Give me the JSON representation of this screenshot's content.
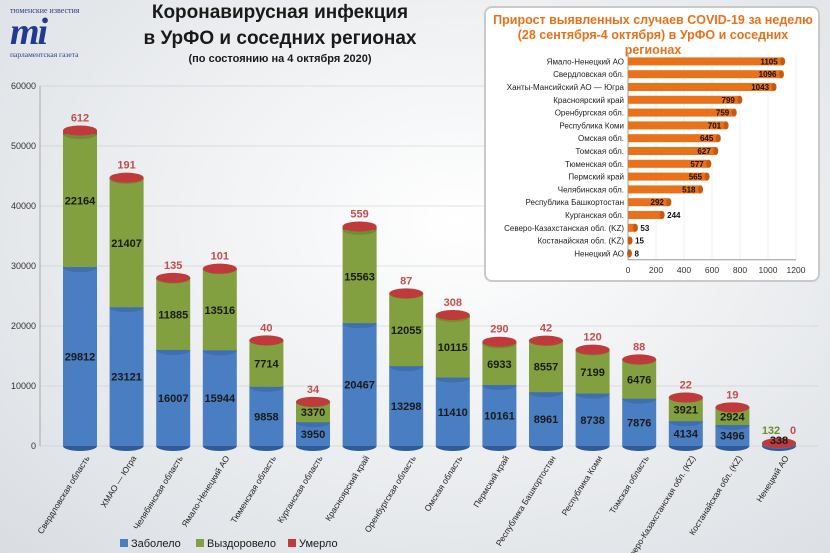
{
  "logo": {
    "top_text": "тюменские известия",
    "mark": "mi",
    "bottom_text": "парламентская газета"
  },
  "header": {
    "title_line1": "Коронавирусная инфекция",
    "title_line2": "в УрФО и соседних регионах",
    "subtitle": "(по состоянию на 4 октября 2020)"
  },
  "colors": {
    "sick": "#4a7ec2",
    "recovered": "#82a040",
    "died": "#c0393b",
    "died_label": "#c0504d",
    "recovered_label": "#6a8e2e",
    "inset_bar": "#e8711a"
  },
  "chart_data": [
    {
      "type": "bar",
      "stacked": true,
      "categories": [
        "Свердловская область",
        "ХМАО — Югра",
        "Челябинская область",
        "Ямало-Ненецкий АО",
        "Тюменская область",
        "Курганская область",
        "Красноярский край",
        "Оренбургская область",
        "Омская область",
        "Пермский край",
        "Республика Башкортостан",
        "Республика Коми",
        "Томская область",
        "Северо-Казахстанская обл. (KZ)",
        "Костанайская обл. (KZ)",
        "Ненецкий АО"
      ],
      "series": [
        {
          "name": "Заболело",
          "values": [
            29812,
            23121,
            16007,
            15944,
            9858,
            3950,
            20467,
            13298,
            11410,
            10161,
            8961,
            8738,
            7876,
            4134,
            3496,
            338
          ]
        },
        {
          "name": "Выздоровело",
          "values": [
            22164,
            21407,
            11885,
            13516,
            7714,
            3370,
            15563,
            12055,
            10115,
            6933,
            8557,
            7199,
            6476,
            3921,
            2924,
            132
          ]
        },
        {
          "name": "Умерло",
          "values": [
            612,
            191,
            135,
            101,
            40,
            34,
            559,
            87,
            308,
            290,
            42,
            120,
            88,
            22,
            19,
            0
          ]
        }
      ],
      "yticks": [
        0,
        10000,
        20000,
        30000,
        40000,
        50000,
        60000
      ],
      "ylim": [
        0,
        60000
      ],
      "legend": "bottom"
    },
    {
      "type": "bar",
      "orientation": "horizontal",
      "title_line1": "Прирост выявленных случаев COVID-19 за неделю",
      "title_line2": "(28 сентября-4 октября) в УрФО и соседних регионах",
      "categories": [
        "Ямало-Ненецкий АО",
        "Свердловская обл.",
        "Ханты-Мансийский АО — Югра",
        "Красноярский край",
        "Оренбургская обл.",
        "Республика Коми",
        "Омская обл.",
        "Томская обл.",
        "Тюменская обл.",
        "Пермский край",
        "Челябинская обл.",
        "Республика Башкортостан",
        "Курганская обл.",
        "Северо-Казахстанская обл. (KZ)",
        "Костанайская обл. (KZ)",
        "Ненецкий АО"
      ],
      "values": [
        1105,
        1096,
        1043,
        799,
        759,
        701,
        645,
        627,
        577,
        565,
        518,
        292,
        244,
        53,
        15,
        8
      ],
      "xticks": [
        0,
        200,
        400,
        600,
        800,
        1000,
        1200
      ],
      "xlim": [
        0,
        1200
      ]
    }
  ]
}
